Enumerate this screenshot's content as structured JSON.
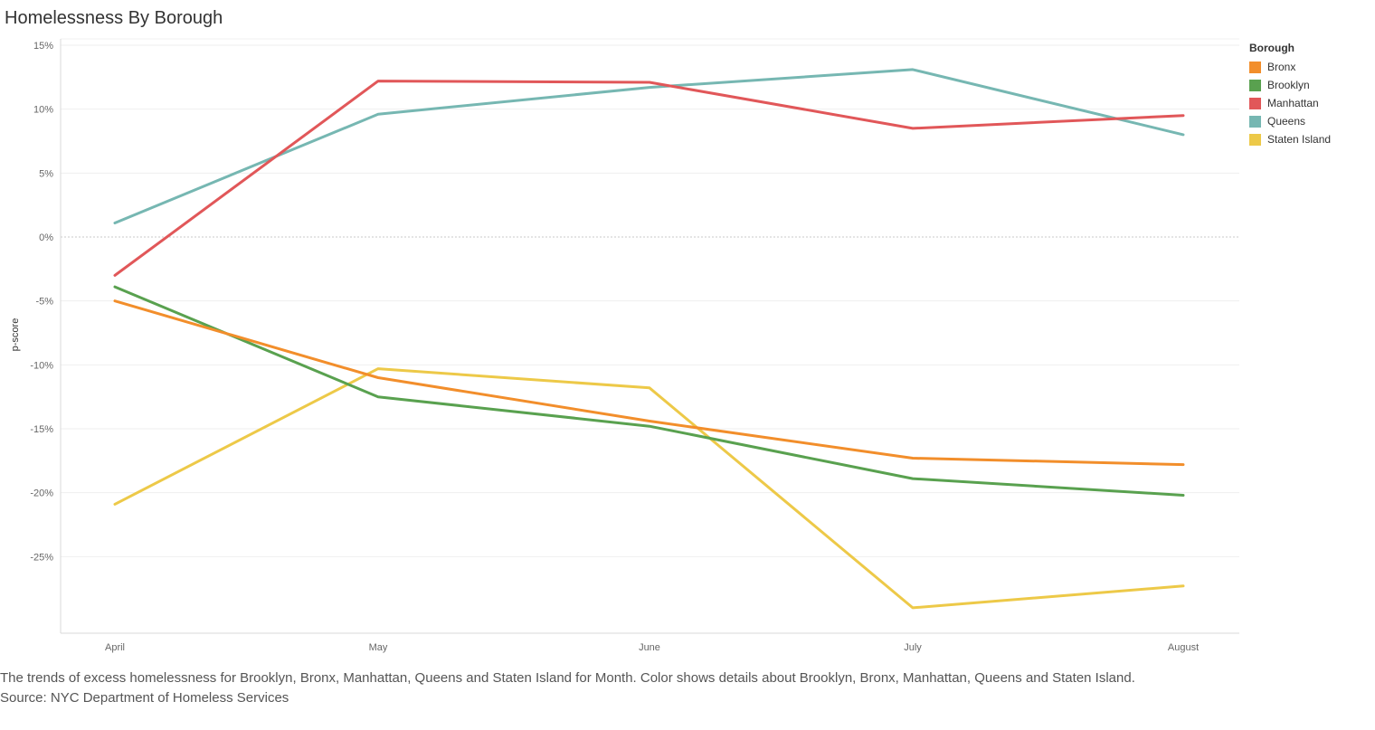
{
  "chart_data": {
    "type": "line",
    "title": "Homelessness By Borough",
    "xlabel": "",
    "ylabel": "p-score",
    "categories": [
      "April",
      "May",
      "June",
      "July",
      "August"
    ],
    "ylim": [
      -30,
      15
    ],
    "yticks": [
      15,
      10,
      5,
      0,
      -5,
      -10,
      -15,
      -20,
      -25
    ],
    "ytick_labels": [
      "15%",
      "10%",
      "5%",
      "0%",
      "-5%",
      "-10%",
      "-15%",
      "-20%",
      "-25%"
    ],
    "grid": true,
    "legend_title": "Borough",
    "legend_position": "right",
    "series": [
      {
        "name": "Bronx",
        "color": "#F28E2B",
        "values": [
          -5.0,
          -11.0,
          -14.4,
          -17.3,
          -17.8
        ]
      },
      {
        "name": "Brooklyn",
        "color": "#59A14F",
        "values": [
          -3.9,
          -12.5,
          -14.8,
          -18.9,
          -20.2
        ]
      },
      {
        "name": "Manhattan",
        "color": "#E15759",
        "values": [
          -3.0,
          12.2,
          12.1,
          8.5,
          9.5
        ]
      },
      {
        "name": "Queens",
        "color": "#76B7B2",
        "values": [
          1.1,
          9.6,
          11.7,
          13.1,
          8.0
        ]
      },
      {
        "name": "Staten Island",
        "color": "#EDC948",
        "values": [
          -20.9,
          -10.3,
          -11.8,
          -29.0,
          -27.3
        ]
      }
    ]
  },
  "caption": {
    "line1": "The trends of excess homelessness for Brooklyn, Bronx, Manhattan, Queens and Staten Island for Month.  Color shows details about Brooklyn, Bronx, Manhattan, Queens and Staten Island.",
    "source": "Source: NYC Department of Homeless Services"
  }
}
